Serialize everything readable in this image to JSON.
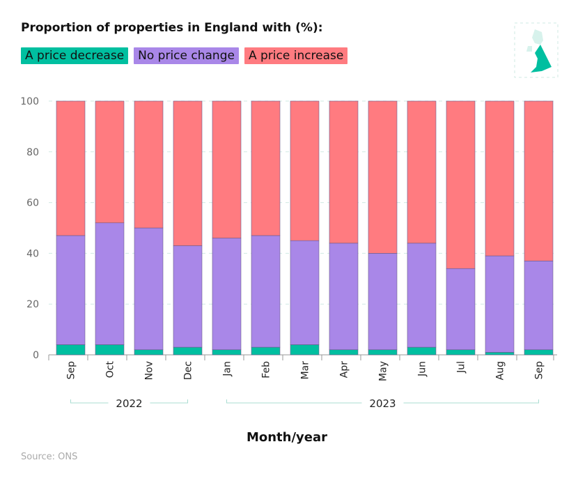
{
  "chart_data": {
    "type": "bar",
    "stacked": true,
    "title": "Proportion of properties in England with (%):",
    "xlabel": "Month/year",
    "ylabel": "",
    "ylim": [
      0,
      100
    ],
    "yticks": [
      0,
      20,
      40,
      60,
      80,
      100
    ],
    "grid": true,
    "legend_position": "top-left",
    "categories": [
      "Sep",
      "Oct",
      "Nov",
      "Dec",
      "Jan",
      "Feb",
      "Mar",
      "Apr",
      "May",
      "Jun",
      "Jul",
      "Aug",
      "Sep"
    ],
    "year_groups": [
      {
        "label": "2022",
        "from": 0,
        "to": 3
      },
      {
        "label": "2023",
        "from": 4,
        "to": 12
      }
    ],
    "series": [
      {
        "name": "A price decrease",
        "color": "#00bfa0",
        "values": [
          4,
          4,
          2,
          3,
          2,
          3,
          4,
          2,
          2,
          3,
          2,
          1,
          2
        ]
      },
      {
        "name": "No price change",
        "color": "#a987e8",
        "values": [
          43,
          48,
          48,
          40,
          44,
          44,
          41,
          42,
          38,
          41,
          32,
          38,
          35
        ]
      },
      {
        "name": "A price increase",
        "color": "#ff7b80",
        "values": [
          53,
          48,
          50,
          57,
          54,
          53,
          55,
          56,
          60,
          56,
          66,
          61,
          63
        ]
      }
    ]
  },
  "source": "Source: ONS",
  "map_icon": "uk-map-england-highlighted-icon"
}
